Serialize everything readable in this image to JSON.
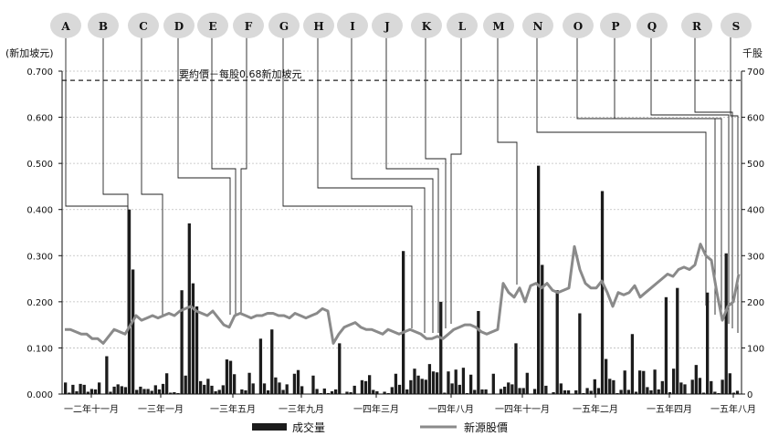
{
  "chart_data": {
    "type": "line+bar",
    "left_axis": {
      "label": "(新加坡元)",
      "ticks": [
        "0.000",
        "0.100",
        "0.200",
        "0.300",
        "0.400",
        "0.500",
        "0.600",
        "0.700"
      ],
      "ylim": [
        0,
        0.7
      ]
    },
    "right_axis": {
      "label": "千股",
      "ticks": [
        "0",
        "100",
        "200",
        "300",
        "400",
        "500",
        "600",
        "700"
      ],
      "ylim": [
        0,
        700
      ]
    },
    "x_labels": [
      "一二年十一月",
      "一三年一月",
      "一三年五月",
      "一三年九月",
      "一四年三月",
      "一四年八月",
      "一四年十一月",
      "一五年二月",
      "一五年四月",
      "一五年八月"
    ],
    "offer_line": {
      "value": 0.68,
      "label": "要約價－每股0.68新加坡元"
    },
    "event_labels": [
      "A",
      "B",
      "C",
      "D",
      "E",
      "F",
      "G",
      "H",
      "I",
      "J",
      "K",
      "L",
      "M",
      "N",
      "O",
      "P",
      "Q",
      "R",
      "S"
    ],
    "legend": {
      "volume": "成交量",
      "price": "新源股價"
    },
    "colors": {
      "price": "#8a8a8a",
      "volume": "#1c1c1c",
      "bubble": "#d9d9d9",
      "offer": "#222222"
    },
    "price_series": [
      0.14,
      0.14,
      0.135,
      0.13,
      0.13,
      0.12,
      0.12,
      0.11,
      0.125,
      0.14,
      0.135,
      0.13,
      0.15,
      0.17,
      0.16,
      0.165,
      0.17,
      0.165,
      0.17,
      0.175,
      0.17,
      0.18,
      0.185,
      0.19,
      0.18,
      0.175,
      0.17,
      0.18,
      0.165,
      0.15,
      0.145,
      0.17,
      0.175,
      0.17,
      0.165,
      0.17,
      0.17,
      0.175,
      0.175,
      0.17,
      0.17,
      0.165,
      0.175,
      0.17,
      0.165,
      0.17,
      0.175,
      0.185,
      0.18,
      0.11,
      0.13,
      0.145,
      0.15,
      0.155,
      0.145,
      0.14,
      0.14,
      0.135,
      0.13,
      0.14,
      0.135,
      0.13,
      0.135,
      0.14,
      0.135,
      0.13,
      0.12,
      0.12,
      0.125,
      0.12,
      0.13,
      0.14,
      0.145,
      0.15,
      0.15,
      0.145,
      0.135,
      0.13,
      0.135,
      0.14,
      0.24,
      0.22,
      0.21,
      0.23,
      0.2,
      0.235,
      0.24,
      0.23,
      0.24,
      0.225,
      0.22,
      0.225,
      0.23,
      0.32,
      0.27,
      0.24,
      0.23,
      0.23,
      0.245,
      0.22,
      0.19,
      0.22,
      0.215,
      0.22,
      0.235,
      0.21,
      0.22,
      0.23,
      0.24,
      0.25,
      0.26,
      0.255,
      0.27,
      0.275,
      0.27,
      0.28,
      0.325,
      0.3,
      0.29,
      0.22,
      0.16,
      0.19,
      0.2,
      0.26
    ]
  }
}
